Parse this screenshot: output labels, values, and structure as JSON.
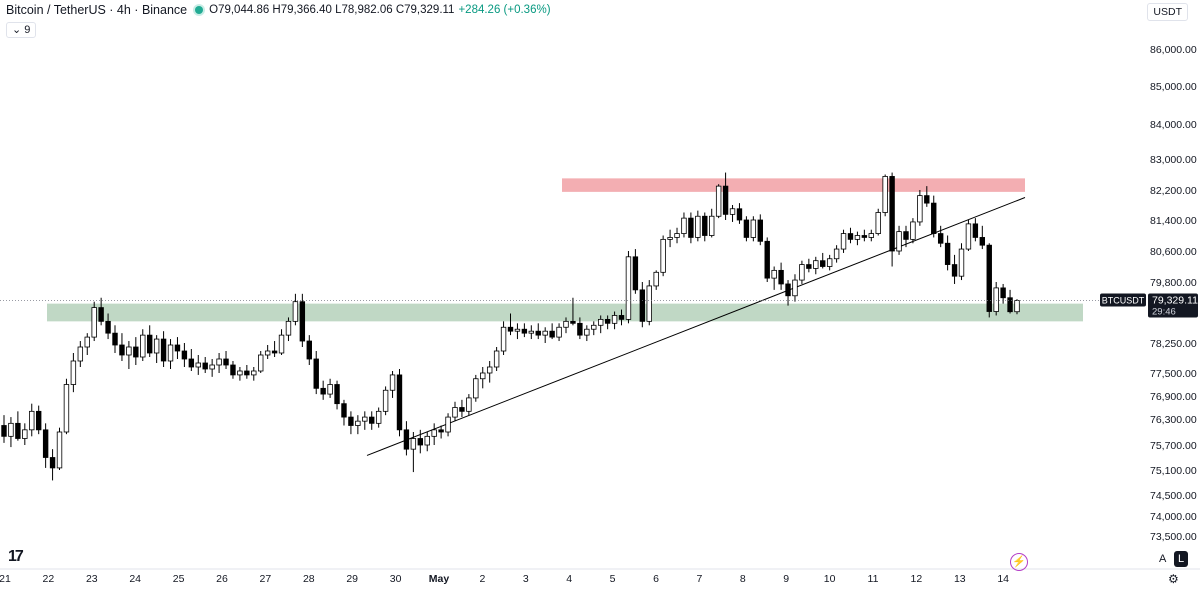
{
  "header": {
    "symbol": "Bitcoin / TetherUS · 4h · Binance",
    "ohlc": "O79,044.86  H79,366.40  L78,982.06  C79,329.11",
    "change": "+284.26 (+0.36%)"
  },
  "indicator_toggle": "⌄  9",
  "currency_button": "USDT",
  "price_tag": {
    "symbol": "BTCUSDT",
    "price": "79,329.11",
    "countdown": "29:46"
  },
  "bottom_controls": {
    "auto_label": "A",
    "log_label": "L"
  },
  "colors": {
    "bull_body": "#ffffff",
    "bear_body": "#000000",
    "wick": "#000000",
    "resistance_zone": "#f2a5aa",
    "support_zone": "#b9d4bf",
    "trendline": "#000000"
  },
  "chart_data": {
    "type": "candlestick",
    "title": "Bitcoin / TetherUS · 4h · Binance",
    "y_ticks": [
      "86,000.00",
      "85,000.00",
      "84,000.00",
      "83,000.00",
      "82,200.00",
      "81,400.00",
      "80,600.00",
      "79,800.00",
      "78,250.00",
      "77,500.00",
      "76,900.00",
      "76,300.00",
      "75,700.00",
      "75,100.00",
      "74,500.00",
      "74,000.00",
      "73,500.00"
    ],
    "x_ticks": [
      "21",
      "22",
      "23",
      "24",
      "25",
      "26",
      "27",
      "28",
      "29",
      "30",
      "May",
      "2",
      "3",
      "4",
      "5",
      "6",
      "7",
      "8",
      "9",
      "10",
      "11",
      "12",
      "13",
      "14"
    ],
    "zones": [
      {
        "kind": "resistance",
        "x_from": "May 4 (approx.)",
        "x_to": "May 14 (approx.)",
        "y_low": 82150,
        "y_high": 82500
      },
      {
        "kind": "support",
        "x_from": "Apr 21 (approx.)",
        "x_to": "May 14 (approx.)",
        "y_low": 78800,
        "y_high": 79250
      }
    ],
    "trendline": {
      "from": {
        "x": "Apr 29 (approx.)",
        "y": 75450
      },
      "to": {
        "x": "May 14 (approx.)",
        "y": 82000
      }
    },
    "candles": [
      {
        "o": 76150,
        "h": 76400,
        "l": 75750,
        "c": 75900
      },
      {
        "o": 75900,
        "h": 76350,
        "l": 75650,
        "c": 76200
      },
      {
        "o": 76200,
        "h": 76500,
        "l": 75800,
        "c": 75850
      },
      {
        "o": 75850,
        "h": 76200,
        "l": 75700,
        "c": 76050
      },
      {
        "o": 76050,
        "h": 76700,
        "l": 75900,
        "c": 76500
      },
      {
        "o": 76500,
        "h": 76650,
        "l": 75950,
        "c": 76050
      },
      {
        "o": 76050,
        "h": 76200,
        "l": 75150,
        "c": 75400
      },
      {
        "o": 75400,
        "h": 75600,
        "l": 74850,
        "c": 75150
      },
      {
        "o": 75150,
        "h": 76100,
        "l": 75100,
        "c": 76000
      },
      {
        "o": 76000,
        "h": 77350,
        "l": 75950,
        "c": 77200
      },
      {
        "o": 77200,
        "h": 78000,
        "l": 77000,
        "c": 77800
      },
      {
        "o": 77800,
        "h": 78300,
        "l": 77650,
        "c": 78150
      },
      {
        "o": 78150,
        "h": 78500,
        "l": 77950,
        "c": 78400
      },
      {
        "o": 78400,
        "h": 79300,
        "l": 78300,
        "c": 79150
      },
      {
        "o": 79150,
        "h": 79400,
        "l": 78700,
        "c": 78800
      },
      {
        "o": 78800,
        "h": 79000,
        "l": 78350,
        "c": 78500
      },
      {
        "o": 78500,
        "h": 78700,
        "l": 78000,
        "c": 78200
      },
      {
        "o": 78200,
        "h": 78500,
        "l": 77800,
        "c": 77950
      },
      {
        "o": 77950,
        "h": 78300,
        "l": 77600,
        "c": 78150
      },
      {
        "o": 78150,
        "h": 78400,
        "l": 77700,
        "c": 77900
      },
      {
        "o": 77900,
        "h": 78600,
        "l": 77800,
        "c": 78450
      },
      {
        "o": 78450,
        "h": 78700,
        "l": 77900,
        "c": 78000
      },
      {
        "o": 78000,
        "h": 78450,
        "l": 77750,
        "c": 78350
      },
      {
        "o": 78350,
        "h": 78550,
        "l": 77650,
        "c": 77800
      },
      {
        "o": 77800,
        "h": 78350,
        "l": 77600,
        "c": 78200
      },
      {
        "o": 78200,
        "h": 78400,
        "l": 77850,
        "c": 78050
      },
      {
        "o": 78050,
        "h": 78250,
        "l": 77650,
        "c": 77850
      },
      {
        "o": 77850,
        "h": 78100,
        "l": 77550,
        "c": 77650
      },
      {
        "o": 77650,
        "h": 77950,
        "l": 77450,
        "c": 77750
      },
      {
        "o": 77750,
        "h": 77900,
        "l": 77500,
        "c": 77600
      },
      {
        "o": 77600,
        "h": 77850,
        "l": 77400,
        "c": 77700
      },
      {
        "o": 77700,
        "h": 78000,
        "l": 77500,
        "c": 77850
      },
      {
        "o": 77850,
        "h": 78050,
        "l": 77600,
        "c": 77700
      },
      {
        "o": 77700,
        "h": 77800,
        "l": 77350,
        "c": 77450
      },
      {
        "o": 77450,
        "h": 77650,
        "l": 77300,
        "c": 77550
      },
      {
        "o": 77550,
        "h": 77700,
        "l": 77350,
        "c": 77450
      },
      {
        "o": 77450,
        "h": 77650,
        "l": 77300,
        "c": 77550
      },
      {
        "o": 77550,
        "h": 78050,
        "l": 77500,
        "c": 77950
      },
      {
        "o": 77950,
        "h": 78200,
        "l": 77850,
        "c": 78050
      },
      {
        "o": 78050,
        "h": 78300,
        "l": 77900,
        "c": 78000
      },
      {
        "o": 78000,
        "h": 78600,
        "l": 77950,
        "c": 78450
      },
      {
        "o": 78450,
        "h": 78900,
        "l": 78300,
        "c": 78800
      },
      {
        "o": 78800,
        "h": 79500,
        "l": 78700,
        "c": 79300
      },
      {
        "o": 79300,
        "h": 79500,
        "l": 78150,
        "c": 78300
      },
      {
        "o": 78300,
        "h": 78450,
        "l": 77700,
        "c": 77850
      },
      {
        "o": 77850,
        "h": 78050,
        "l": 76950,
        "c": 77100
      },
      {
        "o": 77100,
        "h": 77300,
        "l": 76800,
        "c": 76950
      },
      {
        "o": 76950,
        "h": 77350,
        "l": 76850,
        "c": 77200
      },
      {
        "o": 77200,
        "h": 77300,
        "l": 76550,
        "c": 76700
      },
      {
        "o": 76700,
        "h": 76800,
        "l": 76150,
        "c": 76350
      },
      {
        "o": 76350,
        "h": 76500,
        "l": 75950,
        "c": 76150
      },
      {
        "o": 76150,
        "h": 76400,
        "l": 75950,
        "c": 76250
      },
      {
        "o": 76250,
        "h": 76500,
        "l": 76050,
        "c": 76350
      },
      {
        "o": 76350,
        "h": 76500,
        "l": 76050,
        "c": 76200
      },
      {
        "o": 76200,
        "h": 76600,
        "l": 76100,
        "c": 76500
      },
      {
        "o": 76500,
        "h": 77150,
        "l": 76400,
        "c": 77050
      },
      {
        "o": 77050,
        "h": 77550,
        "l": 76850,
        "c": 77450
      },
      {
        "o": 77450,
        "h": 77600,
        "l": 75900,
        "c": 76050
      },
      {
        "o": 76050,
        "h": 76250,
        "l": 75450,
        "c": 75600
      },
      {
        "o": 75600,
        "h": 76000,
        "l": 75050,
        "c": 75850
      },
      {
        "o": 75850,
        "h": 76050,
        "l": 75500,
        "c": 75700
      },
      {
        "o": 75700,
        "h": 76000,
        "l": 75550,
        "c": 75900
      },
      {
        "o": 75900,
        "h": 76200,
        "l": 75700,
        "c": 76050
      },
      {
        "o": 76050,
        "h": 76150,
        "l": 75850,
        "c": 76000
      },
      {
        "o": 76000,
        "h": 76450,
        "l": 75900,
        "c": 76350
      },
      {
        "o": 76350,
        "h": 76750,
        "l": 76250,
        "c": 76600
      },
      {
        "o": 76600,
        "h": 76800,
        "l": 76350,
        "c": 76500
      },
      {
        "o": 76500,
        "h": 76950,
        "l": 76400,
        "c": 76850
      },
      {
        "o": 76850,
        "h": 77450,
        "l": 76750,
        "c": 77350
      },
      {
        "o": 77350,
        "h": 77650,
        "l": 77100,
        "c": 77500
      },
      {
        "o": 77500,
        "h": 77800,
        "l": 77250,
        "c": 77650
      },
      {
        "o": 77650,
        "h": 78150,
        "l": 77550,
        "c": 78050
      },
      {
        "o": 78050,
        "h": 78800,
        "l": 77950,
        "c": 78650
      },
      {
        "o": 78650,
        "h": 79000,
        "l": 78450,
        "c": 78550
      },
      {
        "o": 78550,
        "h": 78750,
        "l": 78350,
        "c": 78600
      },
      {
        "o": 78600,
        "h": 78750,
        "l": 78400,
        "c": 78500
      },
      {
        "o": 78500,
        "h": 78700,
        "l": 78350,
        "c": 78550
      },
      {
        "o": 78550,
        "h": 78750,
        "l": 78350,
        "c": 78450
      },
      {
        "o": 78450,
        "h": 78650,
        "l": 78250,
        "c": 78550
      },
      {
        "o": 78550,
        "h": 78750,
        "l": 78350,
        "c": 78400
      },
      {
        "o": 78400,
        "h": 78750,
        "l": 78300,
        "c": 78650
      },
      {
        "o": 78650,
        "h": 78900,
        "l": 78500,
        "c": 78800
      },
      {
        "o": 78800,
        "h": 79400,
        "l": 78700,
        "c": 78750
      },
      {
        "o": 78750,
        "h": 78900,
        "l": 78350,
        "c": 78450
      },
      {
        "o": 78450,
        "h": 78700,
        "l": 78300,
        "c": 78600
      },
      {
        "o": 78600,
        "h": 78800,
        "l": 78450,
        "c": 78700
      },
      {
        "o": 78700,
        "h": 78950,
        "l": 78500,
        "c": 78850
      },
      {
        "o": 78850,
        "h": 78950,
        "l": 78600,
        "c": 78750
      },
      {
        "o": 78750,
        "h": 79050,
        "l": 78600,
        "c": 78950
      },
      {
        "o": 78950,
        "h": 79100,
        "l": 78700,
        "c": 78850
      },
      {
        "o": 78850,
        "h": 80600,
        "l": 78750,
        "c": 80450
      },
      {
        "o": 80450,
        "h": 80650,
        "l": 79500,
        "c": 79600
      },
      {
        "o": 79600,
        "h": 79800,
        "l": 78650,
        "c": 78800
      },
      {
        "o": 78800,
        "h": 79850,
        "l": 78700,
        "c": 79700
      },
      {
        "o": 79700,
        "h": 80100,
        "l": 79600,
        "c": 80050
      },
      {
        "o": 80050,
        "h": 81000,
        "l": 79950,
        "c": 80900
      },
      {
        "o": 80900,
        "h": 81150,
        "l": 80700,
        "c": 80950
      },
      {
        "o": 80950,
        "h": 81200,
        "l": 80800,
        "c": 81050
      },
      {
        "o": 81050,
        "h": 81600,
        "l": 80950,
        "c": 81450
      },
      {
        "o": 81450,
        "h": 81600,
        "l": 80800,
        "c": 80950
      },
      {
        "o": 80950,
        "h": 81650,
        "l": 80850,
        "c": 81500
      },
      {
        "o": 81500,
        "h": 81600,
        "l": 80850,
        "c": 81000
      },
      {
        "o": 81000,
        "h": 81700,
        "l": 80950,
        "c": 81500
      },
      {
        "o": 81500,
        "h": 82350,
        "l": 81450,
        "c": 82300
      },
      {
        "o": 82300,
        "h": 82650,
        "l": 81400,
        "c": 81550
      },
      {
        "o": 81550,
        "h": 81800,
        "l": 81350,
        "c": 81700
      },
      {
        "o": 81700,
        "h": 81850,
        "l": 81300,
        "c": 81400
      },
      {
        "o": 81400,
        "h": 81500,
        "l": 80850,
        "c": 80950
      },
      {
        "o": 80950,
        "h": 81500,
        "l": 80850,
        "c": 81400
      },
      {
        "o": 81400,
        "h": 81550,
        "l": 80750,
        "c": 80850
      },
      {
        "o": 80850,
        "h": 80950,
        "l": 79800,
        "c": 79900
      },
      {
        "o": 79900,
        "h": 80200,
        "l": 79600,
        "c": 80100
      },
      {
        "o": 80100,
        "h": 80300,
        "l": 79600,
        "c": 79750
      },
      {
        "o": 79750,
        "h": 79850,
        "l": 79200,
        "c": 79450
      },
      {
        "o": 79450,
        "h": 80000,
        "l": 79300,
        "c": 79850
      },
      {
        "o": 79850,
        "h": 80350,
        "l": 79750,
        "c": 80250
      },
      {
        "o": 80250,
        "h": 80400,
        "l": 80050,
        "c": 80150
      },
      {
        "o": 80150,
        "h": 80450,
        "l": 80000,
        "c": 80350
      },
      {
        "o": 80350,
        "h": 80550,
        "l": 80150,
        "c": 80200
      },
      {
        "o": 80200,
        "h": 80500,
        "l": 80100,
        "c": 80400
      },
      {
        "o": 80400,
        "h": 80750,
        "l": 80300,
        "c": 80650
      },
      {
        "o": 80650,
        "h": 81150,
        "l": 80550,
        "c": 81050
      },
      {
        "o": 81050,
        "h": 81200,
        "l": 80800,
        "c": 80900
      },
      {
        "o": 80900,
        "h": 81100,
        "l": 80750,
        "c": 81000
      },
      {
        "o": 81000,
        "h": 81150,
        "l": 80850,
        "c": 80950
      },
      {
        "o": 80950,
        "h": 81150,
        "l": 80850,
        "c": 81050
      },
      {
        "o": 81050,
        "h": 81700,
        "l": 81000,
        "c": 81600
      },
      {
        "o": 81600,
        "h": 82600,
        "l": 81500,
        "c": 82550
      },
      {
        "o": 82550,
        "h": 82650,
        "l": 80200,
        "c": 80600
      },
      {
        "o": 80600,
        "h": 81250,
        "l": 80500,
        "c": 81100
      },
      {
        "o": 81100,
        "h": 81250,
        "l": 80700,
        "c": 80900
      },
      {
        "o": 80900,
        "h": 81450,
        "l": 80800,
        "c": 81350
      },
      {
        "o": 81350,
        "h": 82200,
        "l": 81250,
        "c": 82050
      },
      {
        "o": 82050,
        "h": 82300,
        "l": 81750,
        "c": 81850
      },
      {
        "o": 81850,
        "h": 82050,
        "l": 80950,
        "c": 81050
      },
      {
        "o": 81050,
        "h": 81250,
        "l": 80700,
        "c": 80800
      },
      {
        "o": 80800,
        "h": 81000,
        "l": 80100,
        "c": 80250
      },
      {
        "o": 80250,
        "h": 80500,
        "l": 79750,
        "c": 79950
      },
      {
        "o": 79950,
        "h": 80800,
        "l": 79850,
        "c": 80650
      },
      {
        "o": 80650,
        "h": 81400,
        "l": 80600,
        "c": 81300
      },
      {
        "o": 81300,
        "h": 81450,
        "l": 80850,
        "c": 80950
      },
      {
        "o": 80950,
        "h": 81250,
        "l": 80650,
        "c": 80750
      },
      {
        "o": 80750,
        "h": 80800,
        "l": 78900,
        "c": 79050
      },
      {
        "o": 79050,
        "h": 79800,
        "l": 78950,
        "c": 79650
      },
      {
        "o": 79650,
        "h": 79750,
        "l": 79250,
        "c": 79400
      },
      {
        "o": 79400,
        "h": 79600,
        "l": 79000,
        "c": 79044.86
      },
      {
        "o": 79044.86,
        "h": 79366.4,
        "l": 78982.06,
        "c": 79329.11
      }
    ]
  }
}
